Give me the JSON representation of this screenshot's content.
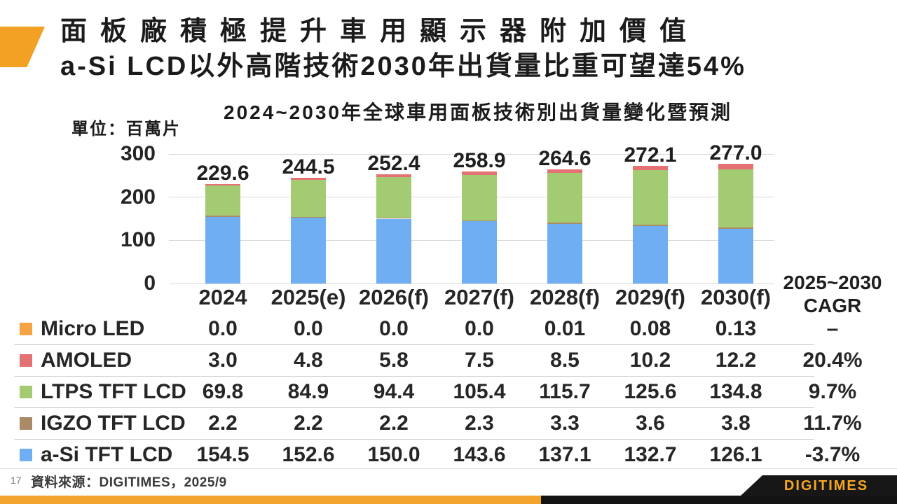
{
  "slide": {
    "title_line1": "面板廠積極提升車用顯示器附加價值",
    "title_line2": "a-Si LCD以外高階技術2030年出貨量比重可望達54%",
    "page_number": "17",
    "source": "資料來源：DIGITIMES，2025/9",
    "logo_text": "DIGITIMES",
    "accent_color": "#F2A124",
    "bottom_bar_orange": "#F2A42C",
    "bottom_bar_black": "#131313",
    "logo_text_color": "#F5A623"
  },
  "chart_data": {
    "type": "bar",
    "stacked": true,
    "title": "2024~2030年全球車用面板技術別出貨量變化暨預測",
    "unit_label": "單位：百萬片",
    "categories": [
      "2024",
      "2025(e)",
      "2026(f)",
      "2027(f)",
      "2028(f)",
      "2029(f)",
      "2030(f)"
    ],
    "series": [
      {
        "name": "a-Si TFT LCD",
        "color": "#6FAEF3",
        "values": [
          "154.5",
          "152.6",
          "150.0",
          "143.6",
          "137.1",
          "132.7",
          "126.1"
        ],
        "cagr": "-3.7%"
      },
      {
        "name": "IGZO TFT LCD",
        "color": "#AB8A68",
        "values": [
          "2.2",
          "2.2",
          "2.2",
          "2.3",
          "3.3",
          "3.6",
          "3.8"
        ],
        "cagr": "11.7%"
      },
      {
        "name": "LTPS TFT LCD",
        "color": "#A2CB72",
        "values": [
          "69.8",
          "84.9",
          "94.4",
          "105.4",
          "115.7",
          "125.6",
          "134.8"
        ],
        "cagr": "9.7%"
      },
      {
        "name": "AMOLED",
        "color": "#E47173",
        "values": [
          "3.0",
          "4.8",
          "5.8",
          "7.5",
          "8.5",
          "10.2",
          "12.2"
        ],
        "cagr": "20.4%"
      },
      {
        "name": "Micro LED",
        "color": "#F6A344",
        "values": [
          "0.0",
          "0.0",
          "0.0",
          "0.0",
          "0.01",
          "0.08",
          "0.13"
        ],
        "cagr": "–"
      }
    ],
    "totals": [
      "229.6",
      "244.5",
      "252.4",
      "258.9",
      "264.6",
      "272.1",
      "277.0"
    ],
    "y_ticks": [
      "300",
      "200",
      "100",
      "0"
    ],
    "ylim": [
      0,
      300
    ],
    "grid": true,
    "cagr_header_line1": "2025~2030",
    "cagr_header_line2": "CAGR",
    "legend_position": "table-rows-left"
  }
}
